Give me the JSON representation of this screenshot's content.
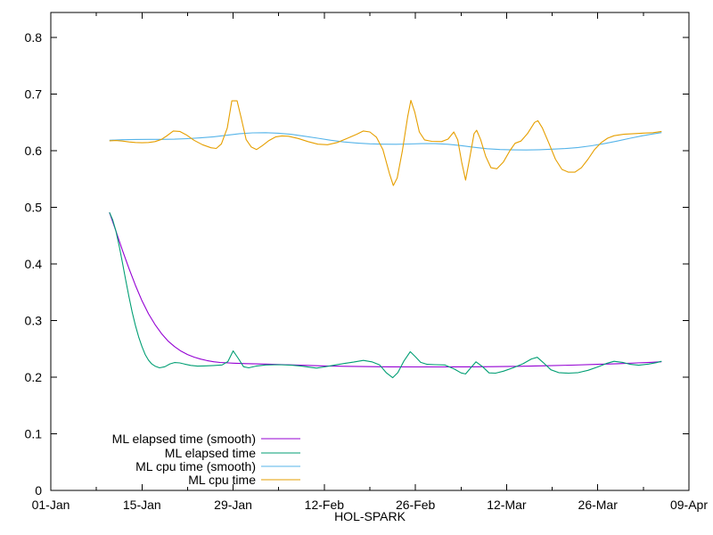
{
  "chart_data": {
    "type": "line",
    "title": "",
    "xlabel": "HOL-SPARK",
    "ylabel": "",
    "grid": false,
    "legend_position": "inside bottom-left",
    "x_axis": {
      "unit": "date",
      "range_days": [
        0,
        98
      ],
      "major_ticks": [
        {
          "day": 0,
          "label": "01-Jan"
        },
        {
          "day": 14,
          "label": "15-Jan"
        },
        {
          "day": 28,
          "label": "29-Jan"
        },
        {
          "day": 42,
          "label": "12-Feb"
        },
        {
          "day": 56,
          "label": "26-Feb"
        },
        {
          "day": 70,
          "label": "12-Mar"
        },
        {
          "day": 84,
          "label": "26-Mar"
        },
        {
          "day": 98,
          "label": "09-Apr"
        }
      ],
      "minor_tick_days": [
        7,
        21,
        35,
        49,
        63,
        77,
        91
      ]
    },
    "y_axis": {
      "range": [
        0,
        0.845
      ],
      "tick_values": [
        0,
        0.1,
        0.2,
        0.3,
        0.4,
        0.5,
        0.6,
        0.7,
        0.8
      ],
      "tick_labels": [
        "0",
        "0.1",
        "0.2",
        "0.3",
        "0.4",
        "0.5",
        "0.6",
        "0.7",
        "0.8"
      ]
    },
    "series": [
      {
        "name": "ML elapsed time (smooth)",
        "color": "#9400d3",
        "points": [
          [
            9,
            0.491
          ],
          [
            10,
            0.458
          ],
          [
            11,
            0.424
          ],
          [
            12,
            0.392
          ],
          [
            13,
            0.362
          ],
          [
            14,
            0.335
          ],
          [
            15,
            0.312
          ],
          [
            16,
            0.293
          ],
          [
            17,
            0.277
          ],
          [
            18,
            0.264
          ],
          [
            19,
            0.254
          ],
          [
            20,
            0.246
          ],
          [
            21,
            0.24
          ],
          [
            22,
            0.2355
          ],
          [
            23,
            0.232
          ],
          [
            24,
            0.2293
          ],
          [
            25,
            0.2273
          ],
          [
            26,
            0.226
          ],
          [
            28,
            0.2247
          ],
          [
            30,
            0.224
          ],
          [
            33,
            0.2231
          ],
          [
            36,
            0.2221
          ],
          [
            39,
            0.2209
          ],
          [
            42,
            0.2199
          ],
          [
            45,
            0.2192
          ],
          [
            48,
            0.2187
          ],
          [
            52,
            0.2183
          ],
          [
            56,
            0.2181
          ],
          [
            60,
            0.2181
          ],
          [
            64,
            0.2182
          ],
          [
            68,
            0.2186
          ],
          [
            72,
            0.2192
          ],
          [
            76,
            0.2201
          ],
          [
            80,
            0.2213
          ],
          [
            84,
            0.2226
          ],
          [
            87,
            0.2238
          ],
          [
            90,
            0.2252
          ],
          [
            92,
            0.2262
          ],
          [
            93.8,
            0.2272
          ]
        ]
      },
      {
        "name": "ML elapsed time",
        "color": "#009e73",
        "points": [
          [
            9,
            0.491
          ],
          [
            9.5,
            0.478
          ],
          [
            10,
            0.458
          ],
          [
            10.5,
            0.432
          ],
          [
            11,
            0.402
          ],
          [
            11.5,
            0.372
          ],
          [
            12,
            0.342
          ],
          [
            12.5,
            0.315
          ],
          [
            13,
            0.291
          ],
          [
            13.5,
            0.271
          ],
          [
            14,
            0.254
          ],
          [
            14.5,
            0.24
          ],
          [
            15,
            0.23
          ],
          [
            15.5,
            0.2235
          ],
          [
            16,
            0.2195
          ],
          [
            16.7,
            0.2165
          ],
          [
            17.5,
            0.2185
          ],
          [
            18.3,
            0.2235
          ],
          [
            19,
            0.2258
          ],
          [
            19.8,
            0.2252
          ],
          [
            20.6,
            0.223
          ],
          [
            21.5,
            0.2208
          ],
          [
            22.5,
            0.2196
          ],
          [
            23.5,
            0.2198
          ],
          [
            25,
            0.2206
          ],
          [
            26.3,
            0.2216
          ],
          [
            27.2,
            0.2275
          ],
          [
            28,
            0.2465
          ],
          [
            28.8,
            0.233
          ],
          [
            29.6,
            0.2185
          ],
          [
            30.4,
            0.2165
          ],
          [
            31.5,
            0.2196
          ],
          [
            33,
            0.2216
          ],
          [
            35,
            0.2221
          ],
          [
            37,
            0.2211
          ],
          [
            38.5,
            0.2196
          ],
          [
            40,
            0.2172
          ],
          [
            40.8,
            0.2161
          ],
          [
            42,
            0.2181
          ],
          [
            43.5,
            0.2211
          ],
          [
            45,
            0.2241
          ],
          [
            46.5,
            0.2266
          ],
          [
            48,
            0.2296
          ],
          [
            49.3,
            0.2271
          ],
          [
            50.5,
            0.2216
          ],
          [
            51.5,
            0.2081
          ],
          [
            52.5,
            0.1991
          ],
          [
            53.3,
            0.2081
          ],
          [
            54.2,
            0.2281
          ],
          [
            55.2,
            0.2451
          ],
          [
            56,
            0.2361
          ],
          [
            56.8,
            0.2261
          ],
          [
            57.8,
            0.2226
          ],
          [
            59,
            0.2221
          ],
          [
            60.5,
            0.2216
          ],
          [
            62,
            0.2141
          ],
          [
            63,
            0.2076
          ],
          [
            63.7,
            0.2056
          ],
          [
            64.5,
            0.2166
          ],
          [
            65.3,
            0.2271
          ],
          [
            66.3,
            0.2186
          ],
          [
            67.3,
            0.2076
          ],
          [
            68.3,
            0.2071
          ],
          [
            69.5,
            0.2106
          ],
          [
            71,
            0.2166
          ],
          [
            72.5,
            0.2236
          ],
          [
            73.8,
            0.2321
          ],
          [
            74.7,
            0.2351
          ],
          [
            75.6,
            0.2261
          ],
          [
            76.8,
            0.2131
          ],
          [
            78,
            0.2081
          ],
          [
            79.5,
            0.2071
          ],
          [
            81,
            0.2081
          ],
          [
            82.5,
            0.2121
          ],
          [
            84,
            0.2181
          ],
          [
            85.3,
            0.2241
          ],
          [
            86.5,
            0.2281
          ],
          [
            87.8,
            0.2261
          ],
          [
            89,
            0.2226
          ],
          [
            90.3,
            0.2211
          ],
          [
            91.8,
            0.2231
          ],
          [
            93,
            0.2256
          ],
          [
            93.8,
            0.2281
          ]
        ]
      },
      {
        "name": "ML cpu time (smooth)",
        "color": "#56b4e9",
        "points": [
          [
            9,
            0.6185
          ],
          [
            11,
            0.6193
          ],
          [
            13,
            0.6198
          ],
          [
            15,
            0.62
          ],
          [
            17,
            0.62
          ],
          [
            19,
            0.6203
          ],
          [
            21,
            0.6212
          ],
          [
            23,
            0.6226
          ],
          [
            25,
            0.6245
          ],
          [
            27,
            0.6272
          ],
          [
            29,
            0.63
          ],
          [
            31,
            0.6315
          ],
          [
            33,
            0.6318
          ],
          [
            35,
            0.6308
          ],
          [
            37,
            0.6288
          ],
          [
            39,
            0.6255
          ],
          [
            41,
            0.622
          ],
          [
            43,
            0.6185
          ],
          [
            45,
            0.6155
          ],
          [
            47,
            0.6135
          ],
          [
            49,
            0.6122
          ],
          [
            51,
            0.6115
          ],
          [
            53,
            0.6114
          ],
          [
            55,
            0.6118
          ],
          [
            57,
            0.6124
          ],
          [
            59,
            0.6124
          ],
          [
            61,
            0.6114
          ],
          [
            63,
            0.609
          ],
          [
            65,
            0.606
          ],
          [
            67,
            0.6035
          ],
          [
            69,
            0.602
          ],
          [
            71,
            0.6014
          ],
          [
            73,
            0.6013
          ],
          [
            75,
            0.6018
          ],
          [
            77,
            0.6026
          ],
          [
            79,
            0.6038
          ],
          [
            81,
            0.6056
          ],
          [
            83,
            0.6086
          ],
          [
            85,
            0.6124
          ],
          [
            87,
            0.617
          ],
          [
            89,
            0.622
          ],
          [
            91,
            0.6266
          ],
          [
            92.5,
            0.6296
          ],
          [
            93.8,
            0.632
          ]
        ]
      },
      {
        "name": "ML cpu time",
        "color": "#e69f00",
        "points": [
          [
            9,
            0.6175
          ],
          [
            10,
            0.618
          ],
          [
            11,
            0.617
          ],
          [
            12,
            0.6155
          ],
          [
            13,
            0.6145
          ],
          [
            14,
            0.614
          ],
          [
            15,
            0.6145
          ],
          [
            16,
            0.616
          ],
          [
            17,
            0.62
          ],
          [
            17.8,
            0.626
          ],
          [
            18.8,
            0.6348
          ],
          [
            19.8,
            0.634
          ],
          [
            20.8,
            0.628
          ],
          [
            22,
            0.6185
          ],
          [
            23.3,
            0.6105
          ],
          [
            24.6,
            0.6052
          ],
          [
            25.4,
            0.604
          ],
          [
            26.2,
            0.612
          ],
          [
            27.1,
            0.64
          ],
          [
            27.8,
            0.688
          ],
          [
            28.6,
            0.6882
          ],
          [
            29.2,
            0.66
          ],
          [
            30,
            0.6195
          ],
          [
            30.8,
            0.6065
          ],
          [
            31.6,
            0.602
          ],
          [
            32.5,
            0.609
          ],
          [
            33.5,
            0.618
          ],
          [
            34.5,
            0.6242
          ],
          [
            35.5,
            0.6262
          ],
          [
            36.5,
            0.6255
          ],
          [
            38,
            0.6215
          ],
          [
            39.5,
            0.616
          ],
          [
            41,
            0.6115
          ],
          [
            42.5,
            0.6105
          ],
          [
            44,
            0.6145
          ],
          [
            45.5,
            0.6215
          ],
          [
            47,
            0.6292
          ],
          [
            48,
            0.6348
          ],
          [
            49,
            0.633
          ],
          [
            50,
            0.624
          ],
          [
            51,
            0.602
          ],
          [
            52,
            0.56
          ],
          [
            52.6,
            0.5385
          ],
          [
            53.2,
            0.552
          ],
          [
            54,
            0.6
          ],
          [
            54.8,
            0.66
          ],
          [
            55.3,
            0.6888
          ],
          [
            55.9,
            0.668
          ],
          [
            56.6,
            0.633
          ],
          [
            57.4,
            0.619
          ],
          [
            58.5,
            0.6165
          ],
          [
            60,
            0.616
          ],
          [
            61,
            0.6205
          ],
          [
            61.9,
            0.633
          ],
          [
            62.5,
            0.619
          ],
          [
            63.1,
            0.58
          ],
          [
            63.7,
            0.548
          ],
          [
            64.3,
            0.585
          ],
          [
            65,
            0.63
          ],
          [
            65.4,
            0.636
          ],
          [
            66,
            0.62
          ],
          [
            66.8,
            0.59
          ],
          [
            67.6,
            0.57
          ],
          [
            68.5,
            0.568
          ],
          [
            69.5,
            0.58
          ],
          [
            70.5,
            0.6
          ],
          [
            71.3,
            0.613
          ],
          [
            72.2,
            0.617
          ],
          [
            73.2,
            0.63
          ],
          [
            74.3,
            0.65
          ],
          [
            74.8,
            0.653
          ],
          [
            75.5,
            0.64
          ],
          [
            76.5,
            0.613
          ],
          [
            77.5,
            0.585
          ],
          [
            78.5,
            0.567
          ],
          [
            79.5,
            0.562
          ],
          [
            80.5,
            0.562
          ],
          [
            81.5,
            0.57
          ],
          [
            82.5,
            0.585
          ],
          [
            83.5,
            0.602
          ],
          [
            84.5,
            0.614
          ],
          [
            85.5,
            0.622
          ],
          [
            86.5,
            0.6265
          ],
          [
            88,
            0.629
          ],
          [
            89.5,
            0.63
          ],
          [
            91,
            0.631
          ],
          [
            92.5,
            0.6318
          ],
          [
            93.8,
            0.634
          ]
        ]
      }
    ],
    "legend_entries": [
      "ML elapsed time (smooth)",
      "ML elapsed time",
      "ML cpu time (smooth)",
      "ML cpu time"
    ]
  }
}
